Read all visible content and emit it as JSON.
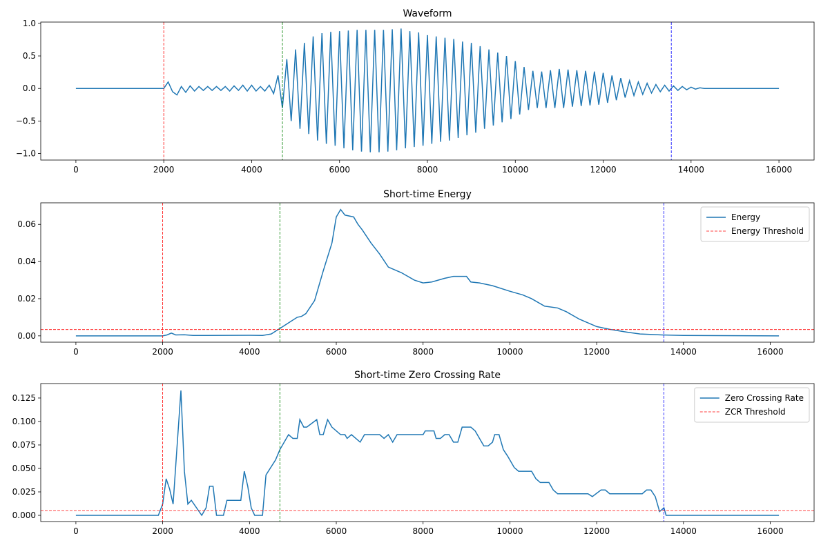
{
  "chart_data": [
    {
      "type": "line",
      "title": "Waveform",
      "x": [
        0,
        2000,
        2100,
        2200,
        2300,
        2400,
        2500,
        2600,
        2700,
        2800,
        2900,
        3000,
        3100,
        3200,
        3300,
        3400,
        3500,
        3600,
        3700,
        3800,
        3900,
        4000,
        4100,
        4200,
        4300,
        4400,
        4500,
        4600,
        4700,
        4800,
        4900,
        5000,
        5100,
        5200,
        5300,
        5400,
        5500,
        5600,
        5700,
        5800,
        5900,
        6000,
        6100,
        6200,
        6300,
        6400,
        6500,
        6600,
        6700,
        6800,
        6900,
        7000,
        7100,
        7200,
        7300,
        7400,
        7500,
        7600,
        7700,
        7800,
        7900,
        8000,
        8100,
        8200,
        8300,
        8400,
        8500,
        8600,
        8700,
        8800,
        8900,
        9000,
        9100,
        9200,
        9300,
        9400,
        9500,
        9600,
        9700,
        9800,
        9900,
        10000,
        10100,
        10200,
        10300,
        10400,
        10500,
        10600,
        10700,
        10800,
        10900,
        11000,
        11100,
        11200,
        11300,
        11400,
        11500,
        11600,
        11700,
        11800,
        11900,
        12000,
        12100,
        12200,
        12300,
        12400,
        12500,
        12600,
        12700,
        12800,
        12900,
        13000,
        13100,
        13200,
        13300,
        13400,
        13500,
        13600,
        13700,
        13800,
        13900,
        14000,
        14100,
        14200,
        14300,
        16000
      ],
      "series": [
        {
          "color": "#1f77b4",
          "values": [
            0,
            0,
            0.1,
            -0.05,
            -0.1,
            0.03,
            -0.06,
            0.04,
            -0.04,
            0.03,
            -0.03,
            0.03,
            -0.03,
            0.03,
            -0.03,
            0.03,
            -0.04,
            0.04,
            -0.03,
            0.05,
            -0.04,
            0.05,
            -0.04,
            0.03,
            -0.04,
            0.05,
            -0.08,
            0.2,
            -0.3,
            0.45,
            -0.5,
            0.6,
            -0.62,
            0.7,
            -0.7,
            0.8,
            -0.8,
            0.85,
            -0.85,
            0.87,
            -0.88,
            0.88,
            -0.92,
            0.89,
            -0.95,
            0.9,
            -0.97,
            0.9,
            -0.98,
            0.9,
            -0.98,
            0.9,
            -0.97,
            0.91,
            -0.95,
            0.92,
            -0.92,
            0.88,
            -0.9,
            0.86,
            -0.88,
            0.82,
            -0.85,
            0.8,
            -0.82,
            0.78,
            -0.8,
            0.76,
            -0.76,
            0.72,
            -0.72,
            0.7,
            -0.68,
            0.65,
            -0.62,
            0.6,
            -0.57,
            0.55,
            -0.52,
            0.5,
            -0.47,
            0.42,
            -0.4,
            0.33,
            -0.33,
            0.27,
            -0.3,
            0.26,
            -0.3,
            0.28,
            -0.3,
            0.3,
            -0.3,
            0.29,
            -0.28,
            0.28,
            -0.27,
            0.27,
            -0.26,
            0.26,
            -0.25,
            0.24,
            -0.22,
            0.2,
            -0.18,
            0.16,
            -0.14,
            0.12,
            -0.11,
            0.1,
            -0.09,
            0.08,
            -0.07,
            0.06,
            -0.05,
            0.05,
            -0.04,
            0.04,
            -0.03,
            0.03,
            -0.02,
            0.02,
            -0.01,
            0.01,
            0,
            0
          ]
        }
      ],
      "xlim": [
        -800,
        16800
      ],
      "xticks": [
        0,
        2000,
        4000,
        6000,
        8000,
        10000,
        12000,
        14000,
        16000
      ],
      "ylim": [
        -1.1,
        1.02
      ],
      "yticks": [
        {
          "value": -1,
          "label": "−1.0"
        },
        {
          "value": -0.5,
          "label": "−0.5"
        },
        {
          "value": 0,
          "label": "0.0"
        },
        {
          "value": 0.5,
          "label": "0.5"
        },
        {
          "value": 1,
          "label": "1.0"
        }
      ],
      "vlines": [
        {
          "x": 2000,
          "color": "red"
        },
        {
          "x": 4700,
          "color": "green"
        },
        {
          "x": 13550,
          "color": "blue"
        }
      ]
    },
    {
      "type": "line",
      "title": "Short-time Energy",
      "x": [
        0,
        2000,
        2100,
        2200,
        2300,
        2500,
        2700,
        3000,
        4000,
        4300,
        4500,
        4700,
        4900,
        5100,
        5200,
        5300,
        5500,
        5700,
        5900,
        6000,
        6100,
        6200,
        6400,
        6500,
        6600,
        6800,
        7000,
        7200,
        7500,
        7800,
        8000,
        8200,
        8500,
        8700,
        9000,
        9100,
        9300,
        9600,
        10000,
        10300,
        10500,
        10800,
        11100,
        11300,
        11600,
        12000,
        12300,
        12700,
        13000,
        13500,
        14000,
        16200
      ],
      "series": [
        {
          "name": "Energy",
          "color": "#1f77b4",
          "values": [
            0,
            0,
            0.0005,
            0.0015,
            0.0005,
            0.0006,
            0.0002,
            0.0002,
            0.0003,
            0.0002,
            0.001,
            0.004,
            0.007,
            0.01,
            0.0105,
            0.012,
            0.019,
            0.035,
            0.05,
            0.064,
            0.068,
            0.065,
            0.064,
            0.06,
            0.057,
            0.05,
            0.044,
            0.037,
            0.034,
            0.03,
            0.0285,
            0.029,
            0.031,
            0.032,
            0.032,
            0.029,
            0.0285,
            0.027,
            0.024,
            0.022,
            0.02,
            0.016,
            0.015,
            0.013,
            0.009,
            0.005,
            0.0035,
            0.002,
            0.001,
            0.0005,
            0.0002,
            0
          ]
        }
      ],
      "hlines": [
        {
          "name": "Energy Threshold",
          "y": 0.0034,
          "color": "red"
        }
      ],
      "xlim": [
        -810,
        17010
      ],
      "xticks": [
        0,
        2000,
        4000,
        6000,
        8000,
        10000,
        12000,
        14000,
        16000
      ],
      "ylim": [
        -0.0034,
        0.0716
      ],
      "yticks": [
        {
          "value": 0,
          "label": "0.00"
        },
        {
          "value": 0.02,
          "label": "0.02"
        },
        {
          "value": 0.04,
          "label": "0.04"
        },
        {
          "value": 0.06,
          "label": "0.06"
        }
      ],
      "vlines": [
        {
          "x": 2000,
          "color": "red"
        },
        {
          "x": 4700,
          "color": "green"
        },
        {
          "x": 13550,
          "color": "blue"
        }
      ],
      "legend": "upper right"
    },
    {
      "type": "line",
      "title": "Short-time Zero Crossing Rate",
      "x": [
        0,
        1900,
        2000,
        2080,
        2160,
        2240,
        2320,
        2420,
        2500,
        2580,
        2660,
        2900,
        3000,
        3080,
        3160,
        3240,
        3400,
        3480,
        3800,
        3880,
        3960,
        4040,
        4120,
        4300,
        4380,
        4600,
        4700,
        4900,
        5000,
        5100,
        5160,
        5250,
        5320,
        5550,
        5620,
        5700,
        5800,
        5900,
        6100,
        6200,
        6250,
        6350,
        6550,
        6650,
        7000,
        7100,
        7200,
        7300,
        7400,
        8000,
        8050,
        8250,
        8300,
        8400,
        8500,
        8600,
        8700,
        8800,
        8900,
        9100,
        9200,
        9300,
        9400,
        9500,
        9600,
        9650,
        9750,
        9850,
        9950,
        10000,
        10100,
        10200,
        10500,
        10600,
        10700,
        10900,
        11000,
        11100,
        11800,
        11900,
        12100,
        12200,
        12300,
        13050,
        13150,
        13250,
        13350,
        13450,
        13550,
        13600,
        16200
      ],
      "series": [
        {
          "name": "Zero Crossing Rate",
          "color": "#1f77b4",
          "values": [
            0,
            0,
            0.012,
            0.039,
            0.028,
            0.012,
            0.066,
            0.133,
            0.047,
            0.012,
            0.016,
            0,
            0.008,
            0.031,
            0.031,
            0,
            0,
            0.016,
            0.016,
            0.047,
            0.031,
            0.008,
            0,
            0,
            0.043,
            0.059,
            0.07,
            0.086,
            0.082,
            0.082,
            0.102,
            0.094,
            0.094,
            0.102,
            0.086,
            0.086,
            0.102,
            0.094,
            0.086,
            0.086,
            0.082,
            0.086,
            0.078,
            0.086,
            0.086,
            0.082,
            0.086,
            0.078,
            0.086,
            0.086,
            0.09,
            0.09,
            0.082,
            0.082,
            0.086,
            0.086,
            0.078,
            0.078,
            0.094,
            0.094,
            0.09,
            0.082,
            0.074,
            0.074,
            0.078,
            0.086,
            0.086,
            0.07,
            0.063,
            0.059,
            0.051,
            0.047,
            0.047,
            0.039,
            0.035,
            0.035,
            0.027,
            0.023,
            0.023,
            0.02,
            0.027,
            0.027,
            0.023,
            0.023,
            0.027,
            0.027,
            0.02,
            0.004,
            0.008,
            0,
            0
          ]
        }
      ],
      "hlines": [
        {
          "name": "ZCR Threshold",
          "y": 0.005,
          "color": "red"
        }
      ],
      "xlim": [
        -810,
        17010
      ],
      "xticks": [
        0,
        2000,
        4000,
        6000,
        8000,
        10000,
        12000,
        14000,
        16000
      ],
      "ylim": [
        -0.0066,
        0.1404
      ],
      "yticks": [
        {
          "value": 0,
          "label": "0.000"
        },
        {
          "value": 0.025,
          "label": "0.025"
        },
        {
          "value": 0.05,
          "label": "0.050"
        },
        {
          "value": 0.075,
          "label": "0.075"
        },
        {
          "value": 0.1,
          "label": "0.100"
        },
        {
          "value": 0.125,
          "label": "0.125"
        }
      ],
      "vlines": [
        {
          "x": 2000,
          "color": "red"
        },
        {
          "x": 4700,
          "color": "green"
        },
        {
          "x": 13550,
          "color": "blue"
        }
      ],
      "legend": "upper right"
    }
  ]
}
